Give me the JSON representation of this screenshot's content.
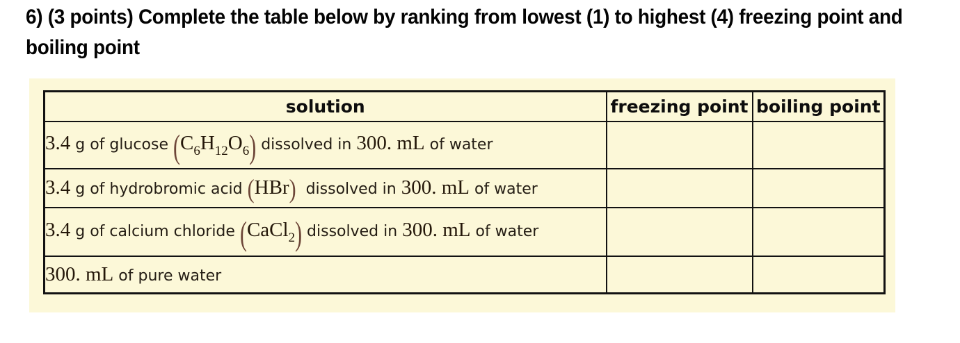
{
  "question": {
    "line1": "6) (3 points) Complete the table below by ranking from lowest (1) to highest (4) freezing point and",
    "line2": "boiling point"
  },
  "colors": {
    "panel_background": "#fcf8d8",
    "table_border": "#121212",
    "formula_paren": "#6d4638",
    "heading_text": "#030303"
  },
  "table": {
    "headers": [
      "solution",
      "freezing point",
      "boiling point"
    ],
    "rows": [
      {
        "solution_text": "3.4 g of glucose (C6H12O6) dissolved in 300. mL of water",
        "solution_segments": [
          {
            "text": "3.4",
            "style": "serif"
          },
          {
            "text": " g of glucose ",
            "style": "sans"
          },
          {
            "text": "(",
            "style": "paren_tall"
          },
          {
            "text": "C",
            "style": "serif"
          },
          {
            "text": "6",
            "style": "sub"
          },
          {
            "text": "H",
            "style": "serif"
          },
          {
            "text": "12",
            "style": "sub"
          },
          {
            "text": "O",
            "style": "serif"
          },
          {
            "text": "6",
            "style": "sub"
          },
          {
            "text": ")",
            "style": "paren_tall"
          },
          {
            "text": " dissolved in ",
            "style": "sans"
          },
          {
            "text": "300. mL",
            "style": "serif"
          },
          {
            "text": " of water",
            "style": "sans"
          }
        ],
        "freezing_point": "",
        "boiling_point": ""
      },
      {
        "solution_text": "3.4 g of hydrobromic acid (HBr) dissolved in 300. mL of water",
        "solution_segments": [
          {
            "text": "3.4",
            "style": "serif"
          },
          {
            "text": " g of hydrobromic acid ",
            "style": "sans"
          },
          {
            "text": "(",
            "style": "paren"
          },
          {
            "text": "HBr",
            "style": "serif"
          },
          {
            "text": ")",
            "style": "paren"
          },
          {
            "text": "  dissolved in ",
            "style": "sans"
          },
          {
            "text": "300. mL",
            "style": "serif"
          },
          {
            "text": " of water",
            "style": "sans"
          }
        ],
        "freezing_point": "",
        "boiling_point": ""
      },
      {
        "solution_text": "3.4 g of calcium chloride (CaCl2) dissolved in 300. mL of water",
        "solution_segments": [
          {
            "text": "3.4",
            "style": "serif"
          },
          {
            "text": " g of calcium chloride ",
            "style": "sans"
          },
          {
            "text": "(",
            "style": "paren_tall"
          },
          {
            "text": "CaCl",
            "style": "serif"
          },
          {
            "text": "2",
            "style": "sub"
          },
          {
            "text": ")",
            "style": "paren_tall"
          },
          {
            "text": " dissolved in ",
            "style": "sans"
          },
          {
            "text": "300. mL",
            "style": "serif"
          },
          {
            "text": " of water",
            "style": "sans"
          }
        ],
        "freezing_point": "",
        "boiling_point": ""
      },
      {
        "solution_text": "300. mL of pure water",
        "solution_segments": [
          {
            "text": "300. mL",
            "style": "serif"
          },
          {
            "text": " of pure water",
            "style": "sans"
          }
        ],
        "freezing_point": "",
        "boiling_point": ""
      }
    ]
  }
}
